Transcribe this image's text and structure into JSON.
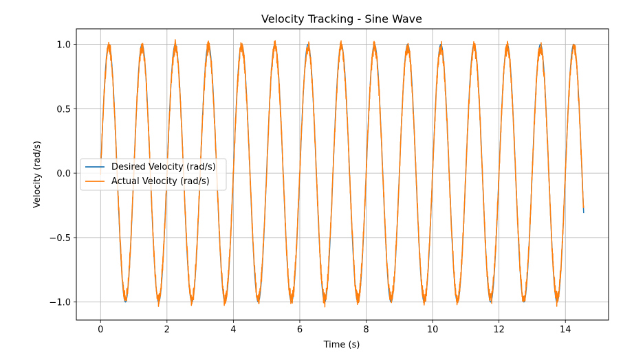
{
  "chart_data": {
    "type": "line",
    "title": "Velocity Tracking - Sine Wave",
    "xlabel": "Time (s)",
    "ylabel": "Velocity (rad/s)",
    "xlim": [
      -0.73,
      15.3
    ],
    "ylim": [
      -1.14,
      1.12
    ],
    "xticks": [
      0,
      2,
      4,
      6,
      8,
      10,
      12,
      14
    ],
    "xtick_labels": [
      "0",
      "2",
      "4",
      "6",
      "8",
      "10",
      "12",
      "14"
    ],
    "yticks": [
      -1.0,
      -0.5,
      0.0,
      0.5,
      1.0
    ],
    "ytick_labels": [
      "−1.0",
      "−0.5",
      "0.0",
      "0.5",
      "1.0"
    ],
    "grid": true,
    "legend_position": "center-left",
    "series": [
      {
        "name": "Desired Velocity (rad/s)",
        "color": "#1f77b4",
        "function": "sin(2*pi*1.0*t)",
        "amplitude": 1.0,
        "frequency_hz": 1.0,
        "t_start": 0.0,
        "t_end": 14.55
      },
      {
        "name": "Actual Velocity (rad/s)",
        "color": "#ff7f0e",
        "function": "sin(2*pi*1.0*t) + noise",
        "amplitude": 1.0,
        "frequency_hz": 1.0,
        "noise_amplitude": 0.04,
        "t_start": 0.0,
        "t_end": 14.55,
        "t_end_value": -0.27
      }
    ]
  }
}
